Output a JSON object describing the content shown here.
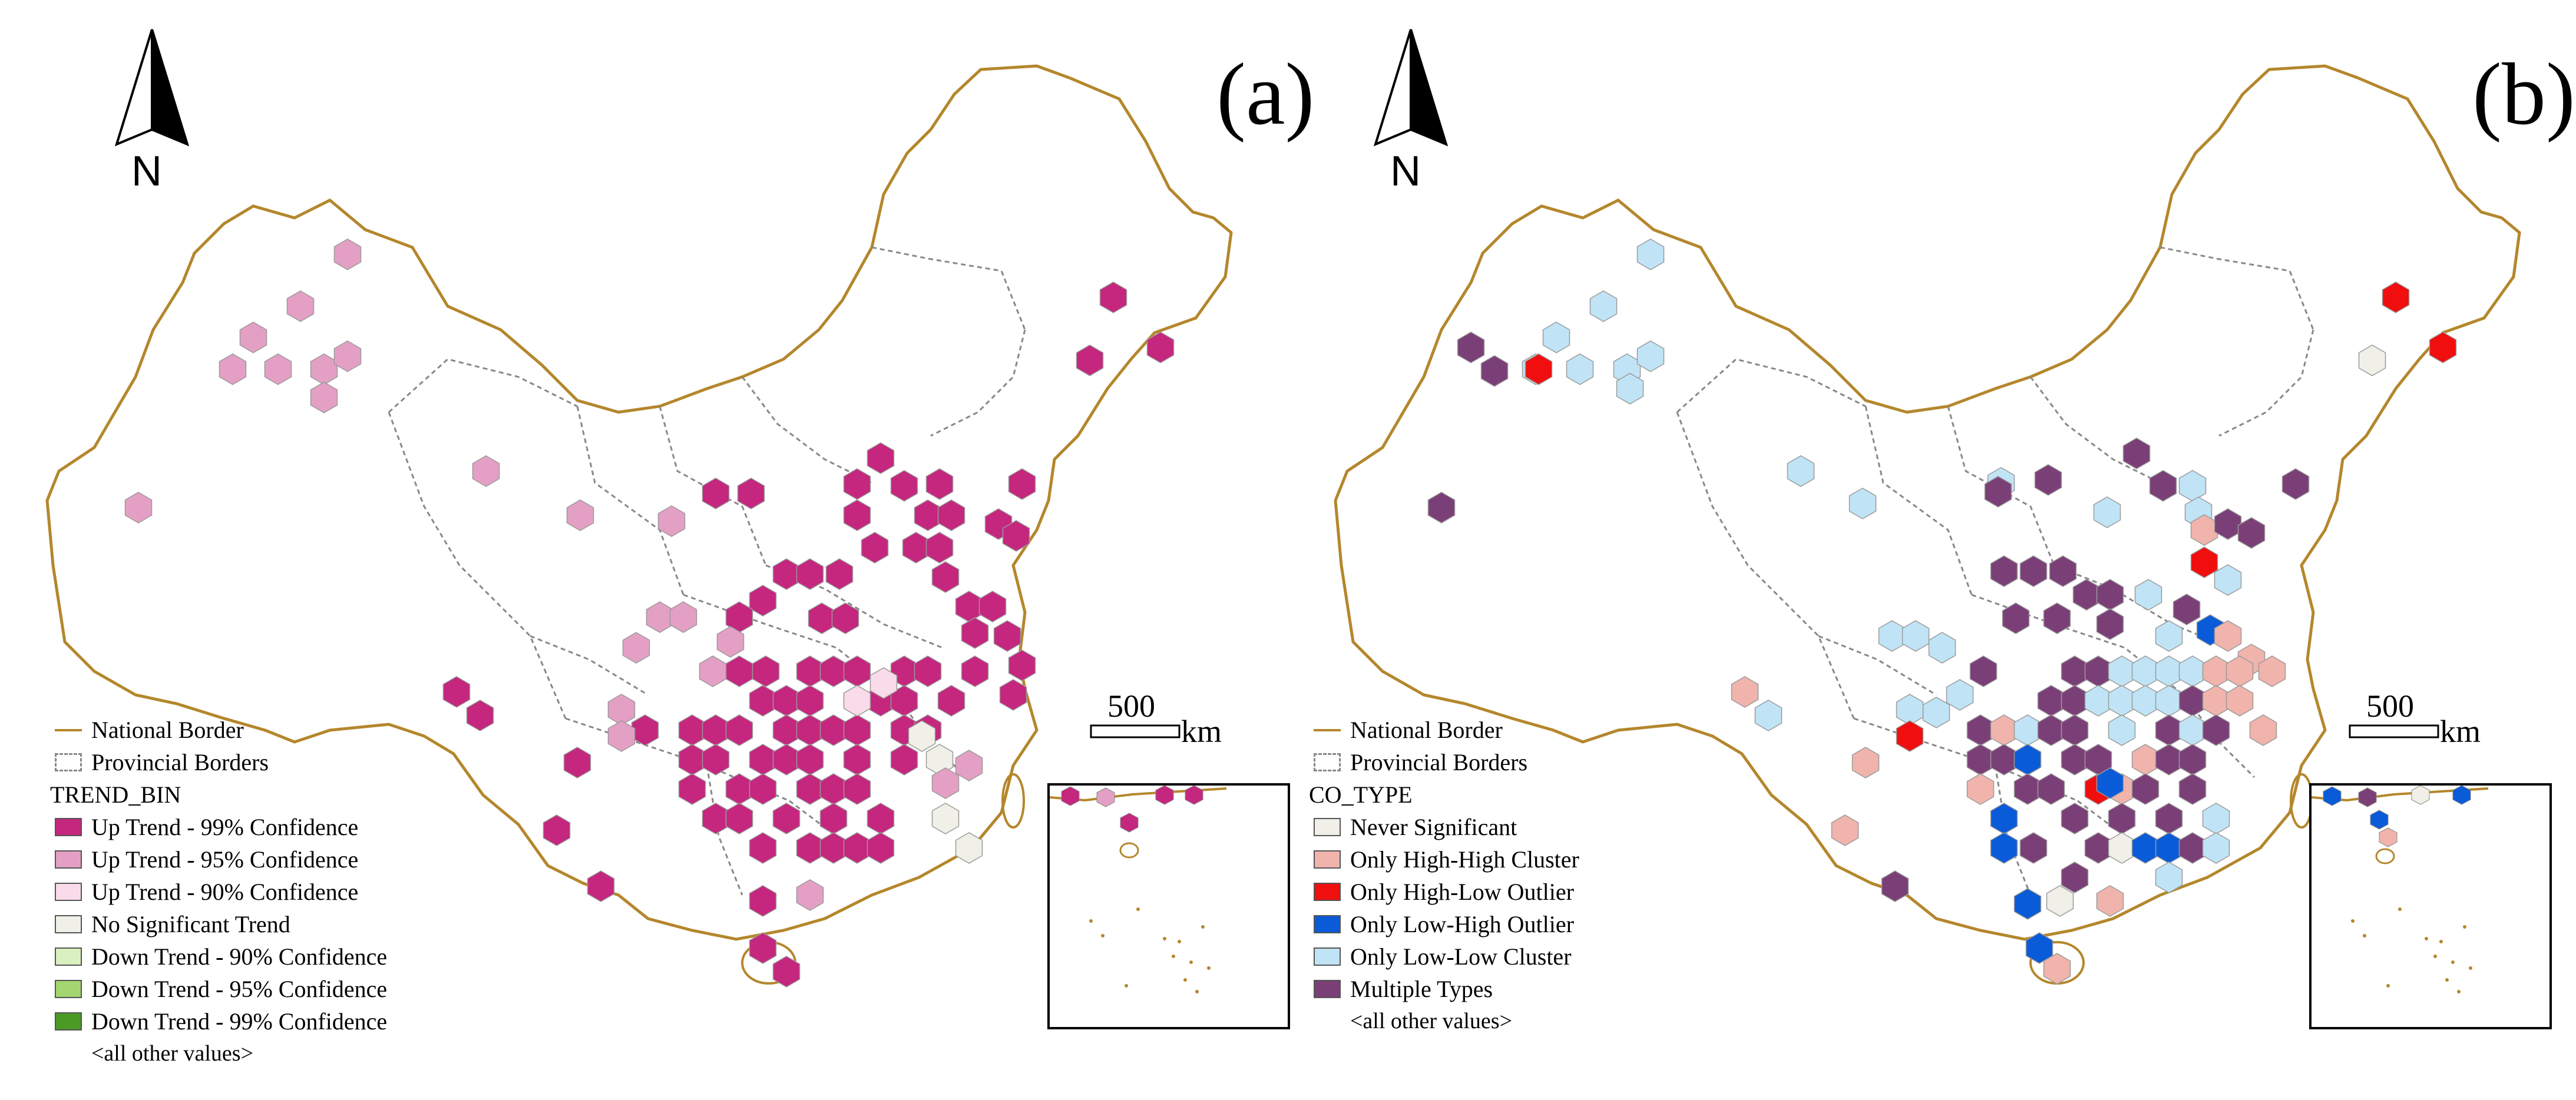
{
  "panels": [
    {
      "label": "(a)",
      "legend_title": "TREND_BIN",
      "scale_value": "500",
      "scale_unit": "km",
      "north": "N",
      "border_items": [
        {
          "label": "National Border"
        },
        {
          "label": "Provincial Borders"
        }
      ],
      "legend": [
        {
          "label": "Up Trend - 99% Confidence",
          "color": "#c5267e"
        },
        {
          "label": "Up Trend - 95% Confidence",
          "color": "#e4a0c4"
        },
        {
          "label": "Up Trend - 90% Confidence",
          "color": "#f9dbea"
        },
        {
          "label": "No Significant Trend",
          "color": "#f0f0e8"
        },
        {
          "label": "Down Trend - 90% Confidence",
          "color": "#d9f0c0"
        },
        {
          "label": "Down Trend - 95% Confidence",
          "color": "#a3d670"
        },
        {
          "label": "Down Trend - 99% Confidence",
          "color": "#4b9a26"
        }
      ],
      "other_values": "<all other values>"
    },
    {
      "label": "(b)",
      "legend_title": "CO_TYPE",
      "scale_value": "500",
      "scale_unit": "km",
      "north": "N",
      "border_items": [
        {
          "label": "National Border"
        },
        {
          "label": "Provincial Borders"
        }
      ],
      "legend": [
        {
          "label": "Never Significant",
          "color": "#f0f0e8"
        },
        {
          "label": "Only High-High Cluster",
          "color": "#f0b4ac"
        },
        {
          "label": "Only High-Low Outlier",
          "color": "#f00e0e"
        },
        {
          "label": "Only Low-High Outlier",
          "color": "#0a5bd8"
        },
        {
          "label": "Only Low-Low Cluster",
          "color": "#c0e4f6"
        },
        {
          "label": "Multiple Types",
          "color": "#7b3f77"
        }
      ],
      "other_values": "<all other values>"
    }
  ],
  "colors": {
    "national_border": "#b4872c",
    "provincial_border": "#888888"
  }
}
